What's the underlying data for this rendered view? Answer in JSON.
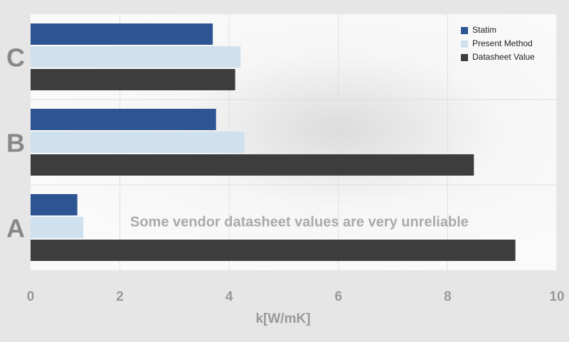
{
  "chart_data": {
    "type": "hbar",
    "categories": [
      "A",
      "B",
      "C"
    ],
    "series": [
      {
        "name": "Statim",
        "color": "#2d5493",
        "values": [
          1.22,
          3.76,
          3.7
        ]
      },
      {
        "name": "Present Method",
        "color": "#cfe0ee",
        "values": [
          1.33,
          4.28,
          4.21
        ]
      },
      {
        "name": "Datasheet Value",
        "color": "#3d3d3d",
        "values": [
          9.24,
          8.48,
          4.11
        ]
      }
    ],
    "xlim": [
      0,
      10
    ],
    "xticks": [
      0,
      2,
      4,
      6,
      8,
      10
    ],
    "xlabel": "k[W/mK]",
    "annotation": "Some vendor datasheet values are very unreliable",
    "grid": true,
    "legend": "top-right"
  }
}
